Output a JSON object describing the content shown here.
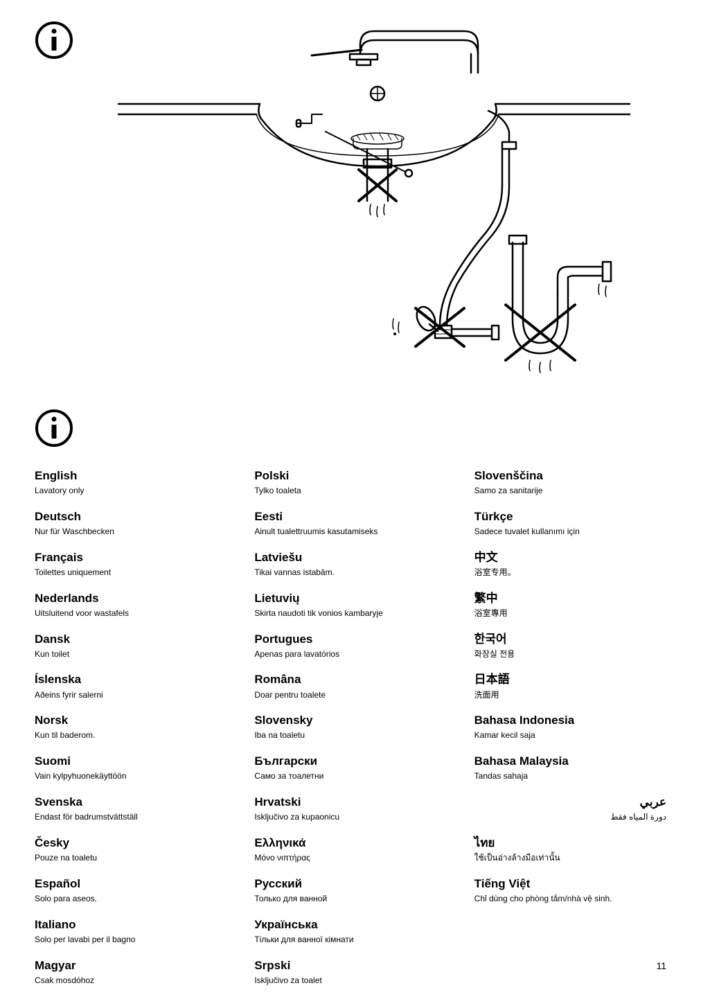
{
  "illustration": {
    "stroke": "#000000",
    "stroke_width": 2.5,
    "background": "#ffffff"
  },
  "info_icon": {
    "circle_stroke": "#000000",
    "circle_stroke_width": 4,
    "letter": "i"
  },
  "typography": {
    "lang_name_size": 17,
    "lang_name_weight": 700,
    "lang_text_size": 12,
    "color": "#000000"
  },
  "columns": [
    [
      {
        "lang": "English",
        "text": "Lavatory only"
      },
      {
        "lang": "Deutsch",
        "text": "Nur für Waschbecken"
      },
      {
        "lang": "Français",
        "text": "Toilettes uniquement"
      },
      {
        "lang": "Nederlands",
        "text": "Uitsluitend voor wastafels"
      },
      {
        "lang": "Dansk",
        "text": "Kun toilet"
      },
      {
        "lang": "Íslenska",
        "text": "Aðeins fyrir salerni"
      },
      {
        "lang": "Norsk",
        "text": "Kun til baderom."
      },
      {
        "lang": "Suomi",
        "text": "Vain kylpyhuonekäyttöön"
      },
      {
        "lang": "Svenska",
        "text": "Endast för badrumstvättställ"
      },
      {
        "lang": "Česky",
        "text": "Pouze na toaletu"
      },
      {
        "lang": "Español",
        "text": "Solo para aseos."
      },
      {
        "lang": "Italiano",
        "text": "Solo per lavabi per il bagno"
      },
      {
        "lang": "Magyar",
        "text": "Csak mosdóhoz"
      }
    ],
    [
      {
        "lang": "Polski",
        "text": "Tylko toaleta"
      },
      {
        "lang": "Eesti",
        "text": "Ainult tualettruumis kasutamiseks"
      },
      {
        "lang": "Latviešu",
        "text": "Tikai vannas istabām."
      },
      {
        "lang": "Lietuvių",
        "text": "Skirta naudoti tik vonios kambaryje"
      },
      {
        "lang": "Portugues",
        "text": "Apenas para lavatórios"
      },
      {
        "lang": "Româna",
        "text": "Doar pentru toalete"
      },
      {
        "lang": "Slovensky",
        "text": "Iba na toaletu"
      },
      {
        "lang": "Български",
        "text": "Само за тоалетни"
      },
      {
        "lang": "Hrvatski",
        "text": "Isključivo za kupaonicu"
      },
      {
        "lang": "Ελληνικά",
        "text": "Μόνο νιπτήρας"
      },
      {
        "lang": "Русский",
        "text": "Только для ванной"
      },
      {
        "lang": "Українська",
        "text": "Тільки для ванної кімнати"
      },
      {
        "lang": "Srpski",
        "text": "Isključivo za toalet"
      }
    ],
    [
      {
        "lang": "Slovenščina",
        "text": "Samo za sanitarije"
      },
      {
        "lang": "Türkçe",
        "text": "Sadece tuvalet kullanımı için"
      },
      {
        "lang": "中文",
        "text": "浴室专用。"
      },
      {
        "lang": "繁中",
        "text": "浴室專用"
      },
      {
        "lang": "한국어",
        "text": "화장실 전용"
      },
      {
        "lang": "日本語",
        "text": "洗面用"
      },
      {
        "lang": "Bahasa Indonesia",
        "text": "Kamar kecil saja"
      },
      {
        "lang": "Bahasa Malaysia",
        "text": "Tandas sahaja"
      },
      {
        "lang": "عربي",
        "text": "دورة المياه فقط",
        "rtl": true
      },
      {
        "lang": "ไทย",
        "text": "ใช้เป็นอ่างล้างมือเท่านั้น"
      },
      {
        "lang": "Tiếng Việt",
        "text": "Chỉ dùng cho phòng tắm/nhà vệ sinh."
      }
    ]
  ],
  "page_number": "11"
}
